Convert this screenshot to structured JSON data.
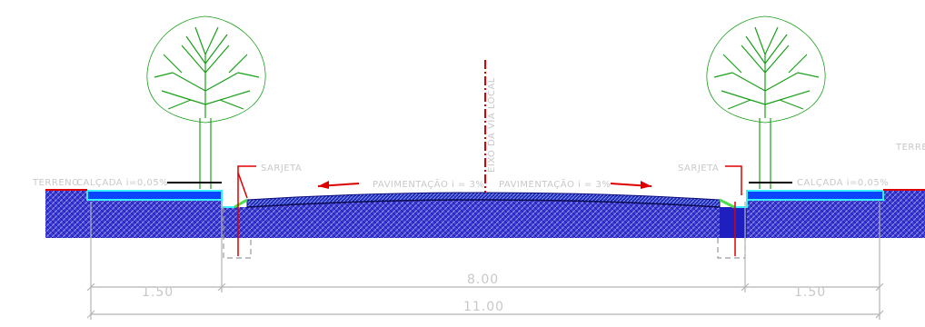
{
  "labels": {
    "terreno_left": "TERRENO",
    "calcada_left": "CALÇADA  i=0,05%",
    "sarjeta_left": "SARJETA",
    "pav_left": "PAVIMENTAÇÃO  i = 3%",
    "pav_right": "PAVIMENTAÇÃO  i = 3%",
    "sarjeta_right": "SARJETA",
    "calcada_right": "CALÇADA  i=0,05%",
    "terreno_right": "TERRE",
    "axis": "EIXO DA VIA LOCAL"
  },
  "dimensions": {
    "left_sidewalk": "1.50",
    "roadway": "8.00",
    "right_sidewalk": "1.50",
    "total": "11.00"
  },
  "colors": {
    "hatch": "#2a2ad0",
    "pavement": "#1d2bb5",
    "sidewalk": "#0a44ff",
    "curb": "#35f0ff",
    "tree": "#19a019",
    "leader": "#dd0000",
    "dimline": "#b5b5b5"
  }
}
